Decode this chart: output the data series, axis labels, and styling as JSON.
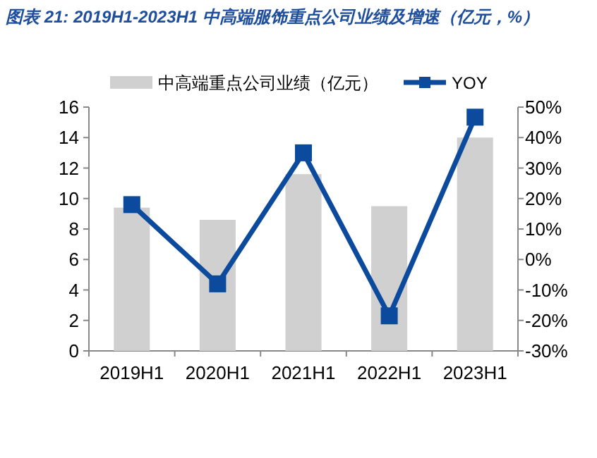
{
  "chart_data": {
    "type": "bar",
    "title": "图表 21: 2019H1-2023H1 中高端服饰重点公司业绩及增速（亿元，%）",
    "categories": [
      "2019H1",
      "2020H1",
      "2021H1",
      "2022H1",
      "2023H1"
    ],
    "series": [
      {
        "name": "中高端重点公司业绩（亿元）",
        "color": "#d0d0d0",
        "values": [
          9.4,
          8.6,
          11.6,
          9.5,
          14.0
        ]
      },
      {
        "name": "YOY",
        "type": "line",
        "axis": "y2",
        "color": "#0b4a9c",
        "marker": "square",
        "values": [
          18,
          -8,
          35,
          -18.5,
          46.7
        ]
      }
    ],
    "ylim": [
      0,
      16
    ],
    "yticks": [
      0,
      2,
      4,
      6,
      8,
      10,
      12,
      14,
      16
    ],
    "y2lim": [
      -30,
      50
    ],
    "y2ticks": [
      {
        "value": -30,
        "label": "-30%"
      },
      {
        "value": -20,
        "label": "-20%"
      },
      {
        "value": -10,
        "label": "-10%"
      },
      {
        "value": 0,
        "label": "0%"
      },
      {
        "value": 10,
        "label": "10%"
      },
      {
        "value": 20,
        "label": "20%"
      },
      {
        "value": 30,
        "label": "30%"
      },
      {
        "value": 40,
        "label": "40%"
      },
      {
        "value": 50,
        "label": "50%"
      }
    ],
    "legend": "top",
    "grid": false
  }
}
